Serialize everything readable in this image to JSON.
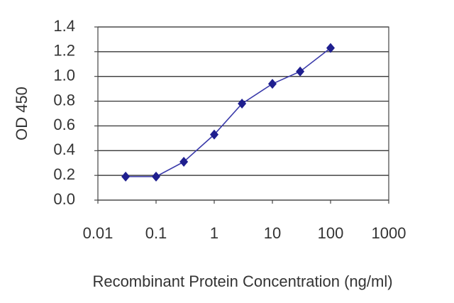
{
  "chart_data": {
    "type": "line",
    "title": null,
    "x_label": "Recombinant Protein Concentration (ng/ml)",
    "y_label": "OD 450",
    "log_x": true,
    "grid": true,
    "xlim": [
      0.01,
      1000
    ],
    "xticks": [
      0.01,
      0.1,
      1,
      10,
      100,
      1000
    ],
    "ylim": [
      0,
      1.4
    ],
    "yticks": [
      {
        "value": 0,
        "label": "0.0"
      },
      0.2,
      0.4,
      0.6,
      0.8,
      {
        "value": 1,
        "label": "1.0"
      },
      1.2,
      1.4
    ],
    "series": [
      {
        "name": null,
        "color": "#1f1f8f",
        "line_color": "#3a3aaa",
        "x": [
          0.03,
          0.1,
          0.3,
          1,
          3,
          10,
          30,
          100
        ],
        "values": [
          0.19,
          0.19,
          0.31,
          0.53,
          0.78,
          0.94,
          1.04,
          1.23
        ]
      }
    ]
  }
}
